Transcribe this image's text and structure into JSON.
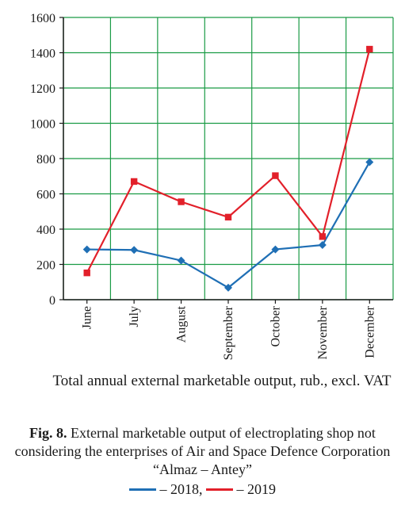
{
  "chart_data": {
    "type": "line",
    "categories": [
      "June",
      "July",
      "August",
      "September",
      "October",
      "November",
      "December"
    ],
    "series": [
      {
        "name": "2018",
        "color": "#1f6fb5",
        "marker": "diamond",
        "values": [
          285,
          282,
          222,
          68,
          285,
          310,
          780
        ]
      },
      {
        "name": "2019",
        "color": "#e2202a",
        "marker": "square",
        "values": [
          152,
          670,
          555,
          468,
          703,
          358,
          1420
        ]
      }
    ],
    "ylim": [
      0,
      1600
    ],
    "yticks": [
      0,
      200,
      400,
      600,
      800,
      1000,
      1200,
      1400,
      1600
    ],
    "grid": true,
    "grid_color": "#1a9b45",
    "xlabel": "Total annual external marketable output, rub., excl. VAT"
  },
  "caption": {
    "label": "Fig. 8.",
    "text": "External marketable output of electroplating shop not considering the enterprises of Air and Space Defence Corporation “Almaz – Antey”"
  },
  "legend": {
    "item1": "– 2018,",
    "item2": "– 2019"
  }
}
